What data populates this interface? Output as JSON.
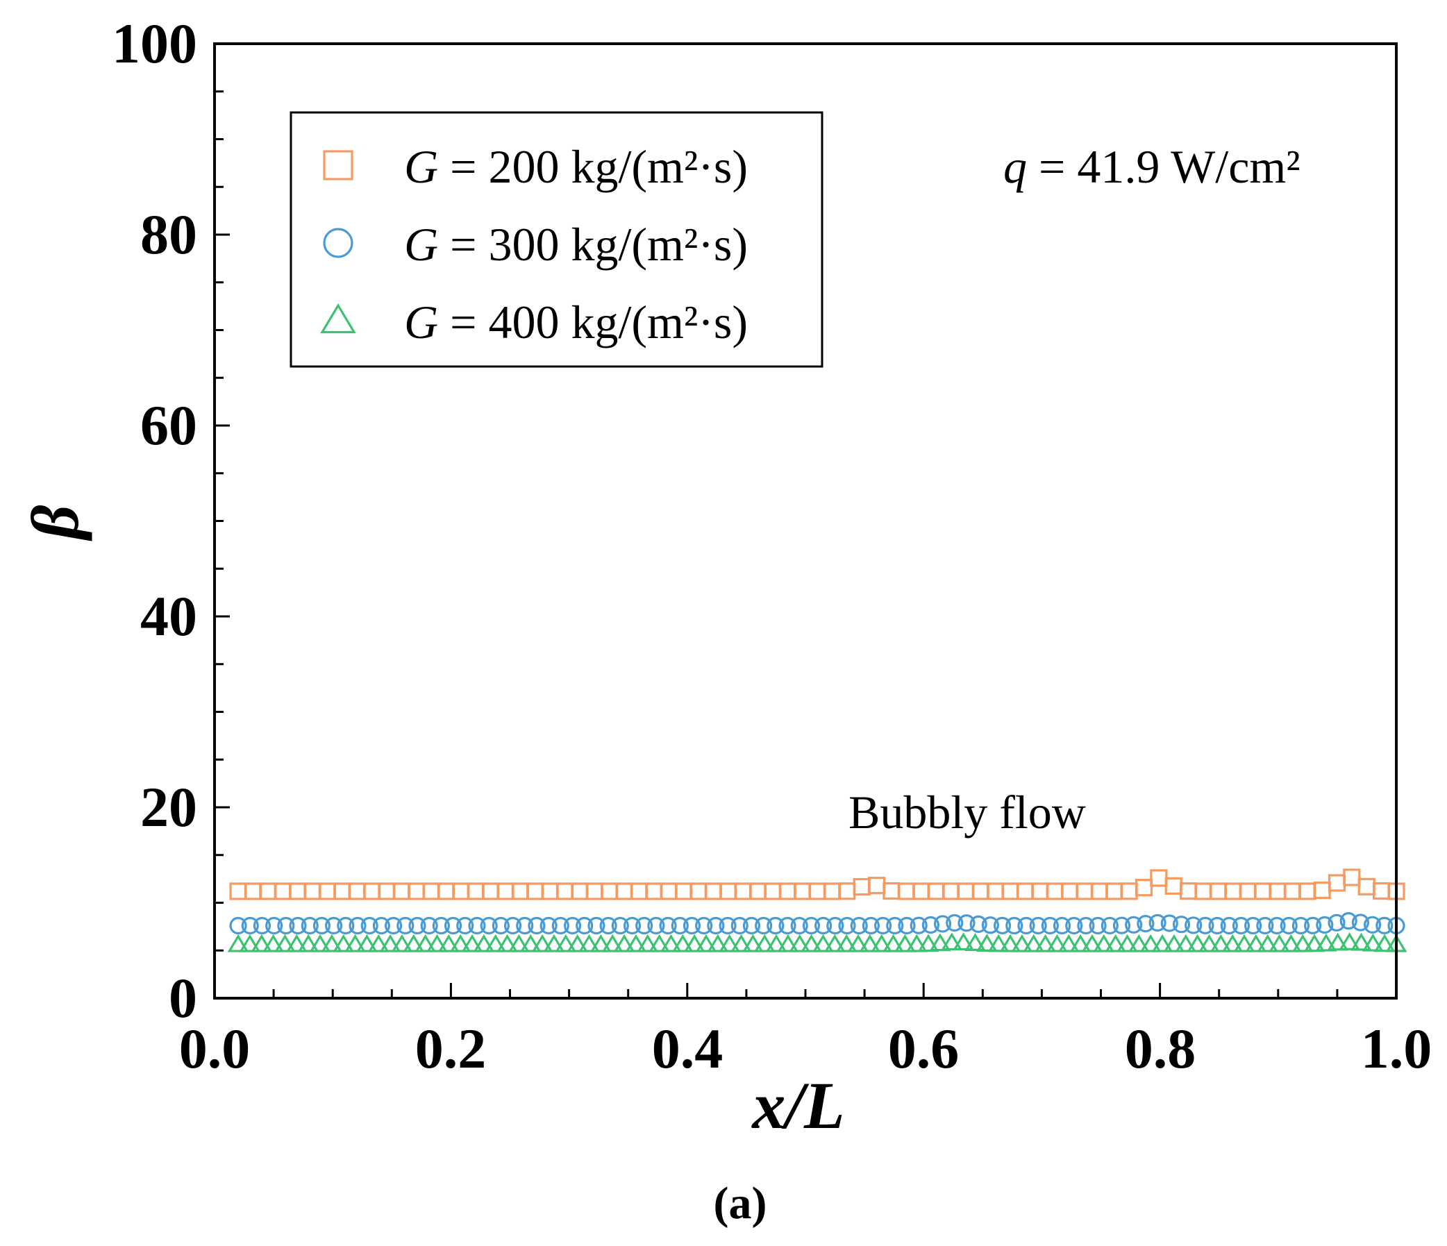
{
  "chart_data": {
    "type": "scatter",
    "xlabel": "x/L",
    "ylabel": "β",
    "xlim": [
      0.0,
      1.0
    ],
    "ylim": [
      0,
      100
    ],
    "xticks": [
      "0.0",
      "0.2",
      "0.4",
      "0.6",
      "0.8",
      "1.0"
    ],
    "yticks": [
      "0",
      "20",
      "40",
      "60",
      "80",
      "100"
    ],
    "legend_position": "top-left",
    "series": [
      {
        "name": "G = 200 kg/(m²·s)",
        "prefix": "G",
        "rest": " = 200 kg/(m²·s)",
        "marker": "square",
        "color": "#F79A60",
        "x_start": 0.02,
        "x_end": 1.0,
        "n": 79,
        "baseline": 11.2,
        "bumps": [
          {
            "x": 0.555,
            "h": 0.8,
            "w": 0.01
          },
          {
            "x": 0.8,
            "h": 1.4,
            "w": 0.012
          },
          {
            "x": 0.96,
            "h": 1.5,
            "w": 0.014
          }
        ]
      },
      {
        "name": "G = 300 kg/(m²·s)",
        "prefix": "G",
        "rest": " = 300 kg/(m²·s)",
        "marker": "circle",
        "color": "#4A9BD4",
        "x_start": 0.02,
        "x_end": 1.0,
        "n": 98,
        "baseline": 7.6,
        "bumps": [
          {
            "x": 0.63,
            "h": 0.3,
            "w": 0.02
          },
          {
            "x": 0.8,
            "h": 0.3,
            "w": 0.02
          },
          {
            "x": 0.96,
            "h": 0.5,
            "w": 0.015
          }
        ]
      },
      {
        "name": "G = 400 kg/(m²·s)",
        "prefix": "G",
        "rest": " = 400 kg/(m²·s)",
        "marker": "triangle",
        "color": "#3CC272",
        "x_start": 0.02,
        "x_end": 1.0,
        "n": 100,
        "baseline": 5.6,
        "bumps": [
          {
            "x": 0.63,
            "h": 0.2,
            "w": 0.02
          },
          {
            "x": 0.96,
            "h": 0.2,
            "w": 0.02
          }
        ]
      }
    ],
    "annotations": {
      "q_var": "q",
      "q_rest": " = 41.9 W/cm²",
      "regime": "Bubbly flow"
    },
    "caption": "(a)"
  }
}
